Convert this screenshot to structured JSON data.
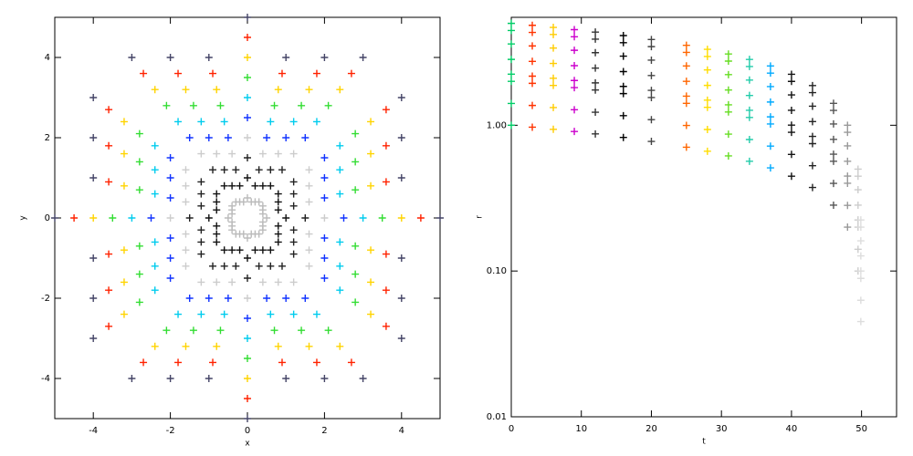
{
  "chart_data": [
    {
      "type": "scatter",
      "xlabel": "x",
      "ylabel": "y",
      "xlim": [
        -5,
        5
      ],
      "ylim": [
        -5,
        5
      ],
      "xticks": [
        -4,
        -2,
        0,
        2,
        4
      ],
      "yticks": [
        -4,
        -2,
        0,
        2,
        4
      ],
      "series": [
        {
          "color": "#444466",
          "x": [
            0,
            1,
            2,
            3,
            4,
            4,
            4,
            5,
            4,
            4,
            4,
            3,
            2,
            1,
            0,
            -1,
            -2,
            -3,
            -4,
            -4,
            -4,
            -5,
            -4,
            -4,
            -4,
            -3,
            -2,
            -1
          ],
          "y": [
            5,
            4,
            4,
            4,
            3,
            2,
            1,
            0,
            -1,
            -2,
            -3,
            -4,
            -4,
            -4,
            -5,
            -4,
            -4,
            -4,
            -3,
            -2,
            -1,
            0,
            1,
            2,
            3,
            4,
            4,
            4
          ]
        },
        {
          "color": "#ff2200",
          "x": [
            0,
            0.9,
            1.8,
            2.7,
            3.6,
            3.6,
            3.6,
            4.5,
            3.6,
            3.6,
            3.6,
            2.7,
            1.8,
            0.9,
            0,
            -0.9,
            -1.8,
            -2.7,
            -3.6,
            -3.6,
            -3.6,
            -4.5,
            -3.6,
            -3.6,
            -3.6,
            -2.7,
            -1.8,
            -0.9
          ],
          "y": [
            4.5,
            3.6,
            3.6,
            3.6,
            2.7,
            1.8,
            0.9,
            0,
            -0.9,
            -1.8,
            -2.7,
            -3.6,
            -3.6,
            -3.6,
            -4.5,
            -3.6,
            -3.6,
            -3.6,
            -2.7,
            -1.8,
            -0.9,
            0,
            0.9,
            1.8,
            2.7,
            3.6,
            3.6,
            3.6
          ]
        },
        {
          "color": "#ffd400",
          "x": [
            0,
            0.8,
            1.6,
            2.4,
            3.2,
            3.2,
            3.2,
            4,
            3.2,
            3.2,
            3.2,
            2.4,
            1.6,
            0.8,
            0,
            -0.8,
            -1.6,
            -2.4,
            -3.2,
            -3.2,
            -3.2,
            -4,
            -3.2,
            -3.2,
            -3.2,
            -2.4,
            -1.6,
            -0.8
          ],
          "y": [
            4,
            3.2,
            3.2,
            3.2,
            2.4,
            1.6,
            0.8,
            0,
            -0.8,
            -1.6,
            -2.4,
            -3.2,
            -3.2,
            -3.2,
            -4,
            -3.2,
            -3.2,
            -3.2,
            -2.4,
            -1.6,
            -0.8,
            0,
            0.8,
            1.6,
            2.4,
            3.2,
            3.2,
            3.2
          ]
        },
        {
          "color": "#33dd33",
          "x": [
            0,
            0.7,
            1.4,
            2.1,
            2.8,
            2.8,
            2.8,
            3.5,
            2.8,
            2.8,
            2.8,
            2.1,
            1.4,
            0.7,
            0,
            -0.7,
            -1.4,
            -2.1,
            -2.8,
            -2.8,
            -2.8,
            -3.5,
            -2.8,
            -2.8,
            -2.8,
            -2.1,
            -1.4,
            -0.7
          ],
          "y": [
            3.5,
            2.8,
            2.8,
            2.8,
            2.1,
            1.4,
            0.7,
            0,
            -0.7,
            -1.4,
            -2.1,
            -2.8,
            -2.8,
            -2.8,
            -3.5,
            -2.8,
            -2.8,
            -2.8,
            -2.1,
            -1.4,
            -0.7,
            0,
            0.7,
            1.4,
            2.1,
            2.8,
            2.8,
            2.8
          ]
        },
        {
          "color": "#00ccee",
          "x": [
            0,
            0.6,
            1.2,
            1.8,
            2.4,
            2.4,
            2.4,
            3,
            2.4,
            2.4,
            2.4,
            1.8,
            1.2,
            0.6,
            0,
            -0.6,
            -1.2,
            -1.8,
            -2.4,
            -2.4,
            -2.4,
            -3,
            -2.4,
            -2.4,
            -2.4,
            -1.8,
            -1.2,
            -0.6
          ],
          "y": [
            3,
            2.4,
            2.4,
            2.4,
            1.8,
            1.2,
            0.6,
            0,
            -0.6,
            -1.2,
            -1.8,
            -2.4,
            -2.4,
            -2.4,
            -3,
            -2.4,
            -2.4,
            -2.4,
            -1.8,
            -1.2,
            -0.6,
            0,
            0.6,
            1.2,
            1.8,
            2.4,
            2.4,
            2.4
          ]
        },
        {
          "color": "#1133ff",
          "x": [
            0,
            0.5,
            1,
            1.5,
            2,
            2,
            2,
            2.5,
            2,
            2,
            2,
            1.5,
            1,
            0.5,
            0,
            -0.5,
            -1,
            -1.5,
            -2,
            -2,
            -2,
            -2.5,
            -2,
            -2,
            -2,
            -1.5,
            -1,
            -0.5
          ],
          "y": [
            2.5,
            2,
            2,
            2,
            1.5,
            1,
            0.5,
            0,
            -0.5,
            -1,
            -1.5,
            -2,
            -2,
            -2,
            -2.5,
            -2,
            -2,
            -2,
            -1.5,
            -1,
            -0.5,
            0,
            0.5,
            1,
            1.5,
            2,
            2,
            2
          ]
        },
        {
          "color": "#cccccc",
          "x": [
            0,
            0.4,
            0.8,
            1.2,
            1.6,
            1.6,
            1.6,
            2,
            1.6,
            1.6,
            1.6,
            1.2,
            0.8,
            0.4,
            0,
            -0.4,
            -0.8,
            -1.2,
            -1.6,
            -1.6,
            -1.6,
            -2,
            -1.6,
            -1.6,
            -1.6,
            -1.2,
            -0.8,
            -0.4
          ],
          "y": [
            2,
            1.6,
            1.6,
            1.6,
            1.2,
            0.8,
            0.4,
            0,
            -0.4,
            -0.8,
            -1.2,
            -1.6,
            -1.6,
            -1.6,
            -2,
            -1.6,
            -1.6,
            -1.6,
            -1.2,
            -0.8,
            -0.4,
            0,
            0.4,
            0.8,
            1.2,
            1.6,
            1.6,
            1.6
          ]
        },
        {
          "color": "#222222",
          "x": [
            0,
            0.3,
            0.6,
            0.9,
            1.2,
            1.2,
            1.2,
            1.5,
            1.2,
            1.2,
            1.2,
            0.9,
            0.6,
            0.3,
            0,
            -0.3,
            -0.6,
            -0.9,
            -1.2,
            -1.2,
            -1.2,
            -1.5,
            -1.2,
            -1.2,
            -1.2,
            -0.9,
            -0.6,
            -0.3
          ],
          "y": [
            1.5,
            1.2,
            1.2,
            1.2,
            0.9,
            0.6,
            0.3,
            0,
            -0.3,
            -0.6,
            -0.9,
            -1.2,
            -1.2,
            -1.2,
            -1.5,
            -1.2,
            -1.2,
            -1.2,
            -0.9,
            -0.6,
            -0.3,
            0,
            0.3,
            0.6,
            0.9,
            1.2,
            1.2,
            1.2
          ]
        },
        {
          "color": "#111111",
          "x": [
            0,
            0.2,
            0.4,
            0.6,
            0.8,
            0.8,
            0.8,
            1,
            0.8,
            0.8,
            0.8,
            0.6,
            0.4,
            0.2,
            0,
            -0.2,
            -0.4,
            -0.6,
            -0.8,
            -0.8,
            -0.8,
            -1,
            -0.8,
            -0.8,
            -0.8,
            -0.6,
            -0.4,
            -0.2
          ],
          "y": [
            1,
            0.8,
            0.8,
            0.8,
            0.6,
            0.4,
            0.2,
            0,
            -0.2,
            -0.4,
            -0.6,
            -0.8,
            -0.8,
            -0.8,
            -1,
            -0.8,
            -0.8,
            -0.8,
            -0.6,
            -0.4,
            -0.2,
            0,
            0.2,
            0.4,
            0.6,
            0.8,
            0.8,
            0.8
          ]
        },
        {
          "color": "#bbbbbb",
          "x": [
            0,
            0.1,
            0.2,
            0.3,
            0.4,
            0.4,
            0.4,
            0.5,
            0.4,
            0.4,
            0.4,
            0.3,
            0.2,
            0.1,
            0,
            -0.1,
            -0.2,
            -0.3,
            -0.4,
            -0.4,
            -0.4,
            -0.5,
            -0.4,
            -0.4,
            -0.4,
            -0.3,
            -0.2,
            -0.1
          ],
          "y": [
            0.5,
            0.4,
            0.4,
            0.4,
            0.3,
            0.2,
            0.1,
            0,
            -0.1,
            -0.2,
            -0.3,
            -0.4,
            -0.4,
            -0.4,
            -0.5,
            -0.4,
            -0.4,
            -0.4,
            -0.3,
            -0.2,
            -0.1,
            0,
            0.1,
            0.2,
            0.3,
            0.4,
            0.4,
            0.4
          ]
        }
      ]
    },
    {
      "type": "scatter",
      "xlabel": "t",
      "ylabel": "r",
      "log_y": true,
      "xlim": [
        0,
        55
      ],
      "ylim": [
        0.01,
        5.5
      ],
      "xticks": [
        0,
        10,
        20,
        30,
        40,
        50
      ],
      "yticks": [
        0.01,
        {
          "value": 0.1,
          "label": "0.10"
        },
        {
          "value": 1,
          "label": "1.00"
        }
      ],
      "x": [
        0,
        3,
        6,
        9,
        12,
        16,
        20,
        25,
        28,
        31,
        34,
        37,
        40,
        43,
        46,
        48,
        49.5,
        49.9
      ],
      "point_colors": [
        "#00cc66",
        "#ff3300",
        "#ffcc00",
        "#cc00cc",
        "#333333",
        "#000000",
        "#444444",
        "#ff6600",
        "#ffdd00",
        "#66dd22",
        "#22ccaa",
        "#00aaff",
        "#111111",
        "#222222",
        "#555555",
        "#999999",
        "#cccccc",
        "#dddddd"
      ],
      "series": [
        {
          "values": [
            1,
            0.97,
            0.938,
            0.906,
            0.872,
            0.825,
            0.775,
            0.707,
            0.663,
            0.616,
            0.566,
            0.51,
            0.447,
            0.374,
            0.283,
            0.2,
            0.1,
            0.045
          ]
        },
        {
          "values": [
            1.41,
            1.367,
            1.323,
            1.277,
            1.229,
            1.163,
            1.092,
            0.997,
            0.935,
            0.869,
            0.798,
            0.719,
            0.631,
            0.528,
            0.399,
            0.282,
            0.141,
            0.063
          ]
        },
        {
          "values": [
            2,
            1.939,
            1.876,
            1.811,
            1.744,
            1.649,
            1.549,
            1.414,
            1.327,
            1.233,
            1.131,
            1.02,
            0.894,
            0.748,
            0.566,
            0.4,
            0.2,
            0.089
          ]
        },
        {
          "values": [
            2.24,
            2.172,
            2.101,
            2.028,
            1.953,
            1.847,
            1.735,
            1.584,
            1.486,
            1.381,
            1.267,
            1.142,
            1.002,
            0.838,
            0.633,
            0.448,
            0.224,
            0.1
          ]
        },
        {
          "values": [
            2.83,
            2.744,
            2.655,
            2.563,
            2.467,
            2.334,
            2.192,
            2.001,
            1.877,
            1.744,
            1.601,
            1.443,
            1.266,
            1.059,
            0.8,
            0.566,
            0.283,
            0.127
          ]
        },
        {
          "values": [
            3.61,
            3.5,
            3.387,
            3.269,
            3.147,
            2.977,
            2.796,
            2.553,
            2.395,
            2.225,
            2.042,
            1.841,
            1.614,
            1.351,
            1.021,
            0.722,
            0.361,
            0.161
          ]
        },
        {
          "values": [
            4.47,
            4.334,
            4.193,
            4.048,
            3.897,
            3.686,
            3.462,
            3.161,
            2.965,
            2.755,
            2.529,
            2.279,
            1.999,
            1.673,
            1.264,
            0.894,
            0.447,
            0.2
          ]
        },
        {
          "values": [
            5,
            4.848,
            4.691,
            4.528,
            4.359,
            4.123,
            3.873,
            3.536,
            3.317,
            3.082,
            2.829,
            2.55,
            2.236,
            1.871,
            1.414,
            1,
            0.5,
            0.224
          ]
        }
      ]
    }
  ]
}
